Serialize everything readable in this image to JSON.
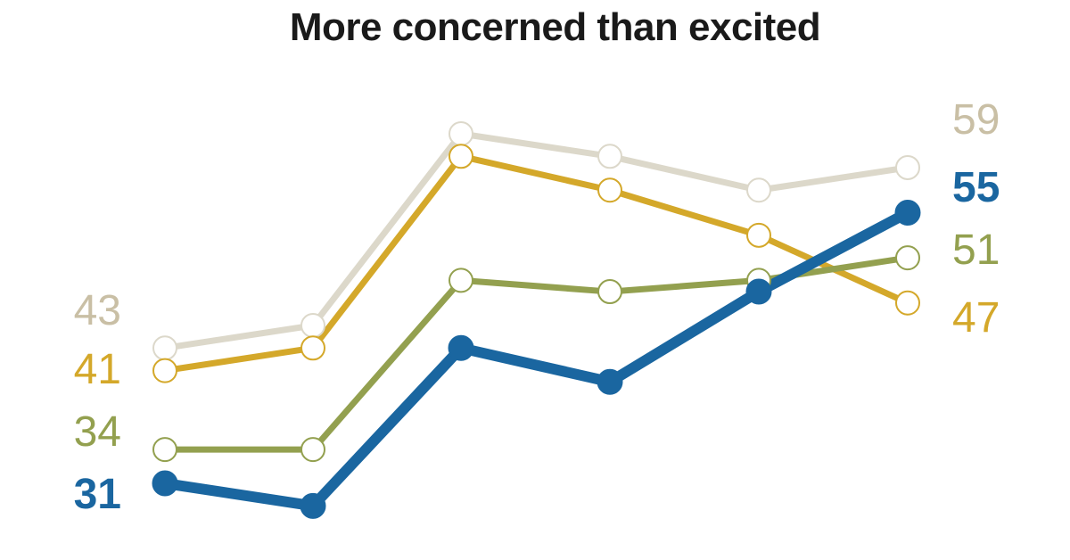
{
  "chart_data": {
    "type": "line",
    "title": "More concerned than excited",
    "categories": [
      "",
      "",
      "",
      "",
      "",
      ""
    ],
    "ylim": [
      28,
      62
    ],
    "grid": false,
    "legend": "none",
    "series": [
      {
        "key": "light",
        "values": [
          43,
          45,
          62,
          60,
          57,
          59
        ],
        "color": "#dcd8ca",
        "label_color": "#c9bfa5",
        "marker": "open",
        "emphasis": false,
        "start_label": "43",
        "end_label": "59"
      },
      {
        "key": "gold",
        "values": [
          41,
          43,
          60,
          57,
          53,
          47
        ],
        "color": "#d4a82a",
        "label_color": "#d4a82a",
        "marker": "open",
        "emphasis": false,
        "start_label": "41",
        "end_label": "47"
      },
      {
        "key": "olive",
        "values": [
          34,
          34,
          49,
          48,
          49,
          51
        ],
        "color": "#93a04f",
        "label_color": "#93a04f",
        "marker": "open",
        "emphasis": false,
        "start_label": "34",
        "end_label": "51"
      },
      {
        "key": "blue",
        "values": [
          31,
          29,
          43,
          40,
          48,
          55
        ],
        "color": "#1a66a0",
        "label_color": "#1a66a0",
        "marker": "filled",
        "emphasis": true,
        "start_label": "31",
        "end_label": "55"
      }
    ]
  }
}
